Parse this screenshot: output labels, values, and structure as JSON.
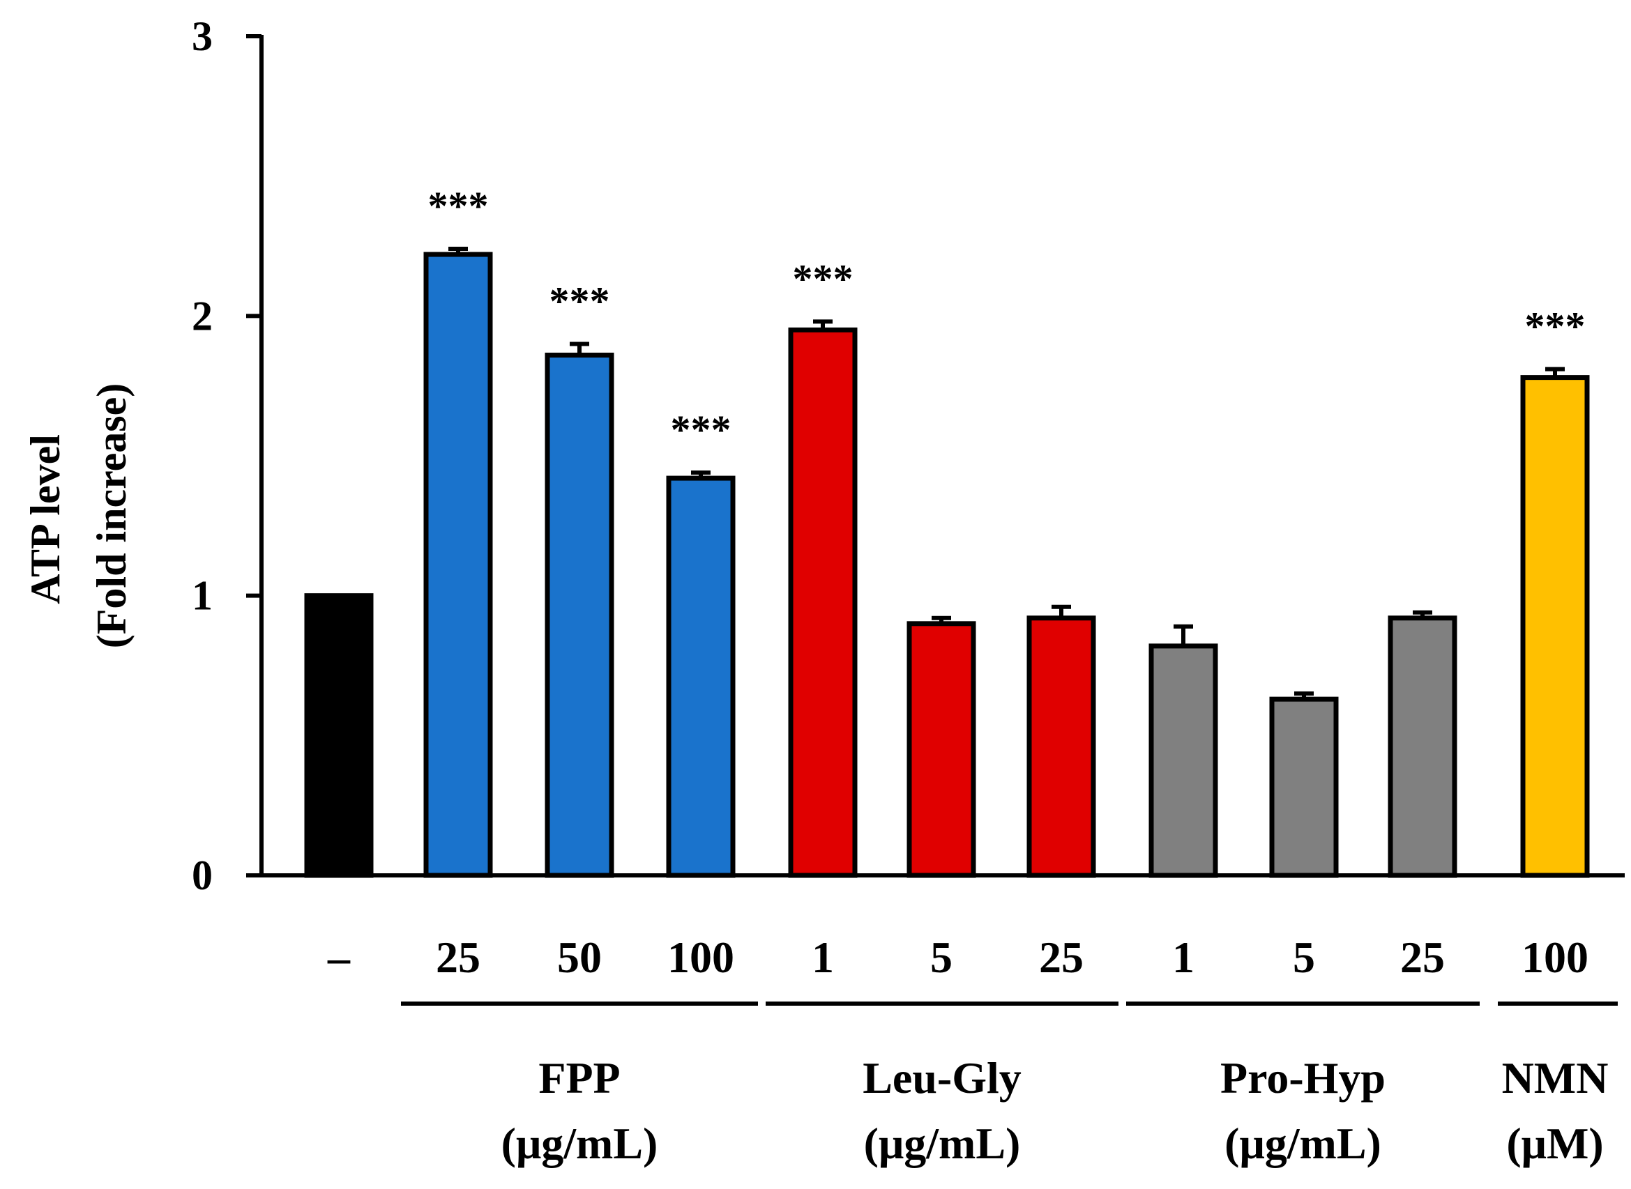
{
  "chart_data": {
    "type": "bar",
    "title": "",
    "ylabel": "ATP level",
    "ylabel_sub": "(Fold increase)",
    "xlabel": "",
    "ylim": [
      0,
      3
    ],
    "yticks": [
      "0",
      "1",
      "2",
      "3"
    ],
    "grid": false,
    "legend": "none",
    "categories": [
      "–",
      "25",
      "50",
      "100",
      "1",
      "5",
      "25",
      "1",
      "5",
      "25",
      "100"
    ],
    "values": [
      1.0,
      2.22,
      1.86,
      1.42,
      1.95,
      0.9,
      0.92,
      0.82,
      0.63,
      0.92,
      1.78
    ],
    "errors": [
      0.0,
      0.02,
      0.04,
      0.02,
      0.03,
      0.02,
      0.04,
      0.07,
      0.02,
      0.02,
      0.03
    ],
    "colors": [
      "#000000",
      "#1A73CC",
      "#1A73CC",
      "#1A73CC",
      "#E00000",
      "#E00000",
      "#E00000",
      "#808080",
      "#808080",
      "#808080",
      "#FFC000"
    ],
    "significance": [
      "",
      "***",
      "***",
      "***",
      "***",
      "",
      "",
      "",
      "",
      "",
      "***"
    ],
    "groups": [
      {
        "name": "FPP",
        "unit": "(μg/mL)",
        "start": 1,
        "end": 3
      },
      {
        "name": "Leu-Gly",
        "unit": "(μg/mL)",
        "start": 4,
        "end": 6
      },
      {
        "name": "Pro-Hyp",
        "unit": "(μg/mL)",
        "start": 7,
        "end": 9
      },
      {
        "name": "NMN",
        "unit": "(μM)",
        "start": 10,
        "end": 10
      }
    ]
  }
}
